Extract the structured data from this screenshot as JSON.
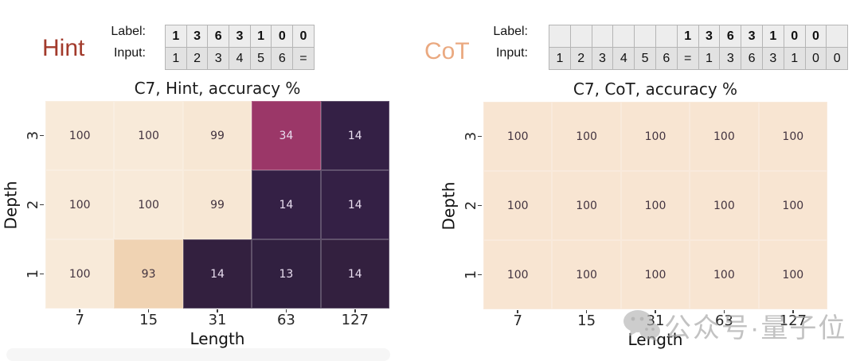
{
  "panels": [
    {
      "id": "hint",
      "tag": "Hint",
      "tag_color": "#a23a2b",
      "table": {
        "row_labels": [
          "Label:",
          "Input:"
        ],
        "rows": [
          {
            "style": "label",
            "cells": [
              "1",
              "3",
              "6",
              "3",
              "1",
              "0",
              "0"
            ]
          },
          {
            "style": "input",
            "cells": [
              "1",
              "2",
              "3",
              "4",
              "5",
              "6",
              "="
            ]
          }
        ]
      },
      "chart": {
        "title": "C7, Hint, accuracy %",
        "xlabel": "Length",
        "ylabel": "Depth",
        "x_ticks": [
          "7",
          "15",
          "31",
          "63",
          "127"
        ],
        "y_ticks": [
          "3",
          "2",
          "1"
        ],
        "cells": [
          [
            {
              "v": "100",
              "bg": "#f8ead9",
              "fg": "dark"
            },
            {
              "v": "100",
              "bg": "#f8ead9",
              "fg": "dark"
            },
            {
              "v": "99",
              "bg": "#f7e7d4",
              "fg": "dark"
            },
            {
              "v": "34",
              "bg": "#9b3768",
              "fg": "light"
            },
            {
              "v": "14",
              "bg": "#342045",
              "fg": "light"
            }
          ],
          [
            {
              "v": "100",
              "bg": "#f8ead9",
              "fg": "dark"
            },
            {
              "v": "100",
              "bg": "#f8ead9",
              "fg": "dark"
            },
            {
              "v": "99",
              "bg": "#f7e7d4",
              "fg": "dark"
            },
            {
              "v": "14",
              "bg": "#342045",
              "fg": "light"
            },
            {
              "v": "14",
              "bg": "#342045",
              "fg": "light"
            }
          ],
          [
            {
              "v": "100",
              "bg": "#f8ead9",
              "fg": "dark"
            },
            {
              "v": "93",
              "bg": "#f0d3b3",
              "fg": "dark"
            },
            {
              "v": "14",
              "bg": "#33203f",
              "fg": "light"
            },
            {
              "v": "13",
              "bg": "#312040",
              "fg": "light"
            },
            {
              "v": "14",
              "bg": "#33203f",
              "fg": "light"
            }
          ]
        ]
      }
    },
    {
      "id": "cot",
      "tag": "CoT",
      "tag_color": "#eaa980",
      "table": {
        "row_labels": [
          "Label:",
          "Input:"
        ],
        "rows": [
          {
            "style": "label",
            "cells": [
              "",
              "",
              "",
              "",
              "",
              "",
              "1",
              "3",
              "6",
              "3",
              "1",
              "0",
              "0",
              ""
            ]
          },
          {
            "style": "input",
            "cells": [
              "1",
              "2",
              "3",
              "4",
              "5",
              "6",
              "=",
              "1",
              "3",
              "6",
              "3",
              "1",
              "0",
              "0"
            ]
          }
        ]
      },
      "chart": {
        "title": "C7, CoT, accuracy %",
        "xlabel": "Length",
        "ylabel": "Depth",
        "x_ticks": [
          "7",
          "15",
          "31",
          "63",
          "127"
        ],
        "y_ticks": [
          "3",
          "2",
          "1"
        ],
        "cells": [
          [
            {
              "v": "100",
              "bg": "#f8e5d2",
              "fg": "dark"
            },
            {
              "v": "100",
              "bg": "#f8e5d2",
              "fg": "dark"
            },
            {
              "v": "100",
              "bg": "#f8e5d2",
              "fg": "dark"
            },
            {
              "v": "100",
              "bg": "#f8e5d2",
              "fg": "dark"
            },
            {
              "v": "100",
              "bg": "#f8e5d2",
              "fg": "dark"
            }
          ],
          [
            {
              "v": "100",
              "bg": "#f8e5d2",
              "fg": "dark"
            },
            {
              "v": "100",
              "bg": "#f8e5d2",
              "fg": "dark"
            },
            {
              "v": "100",
              "bg": "#f8e5d2",
              "fg": "dark"
            },
            {
              "v": "100",
              "bg": "#f8e5d2",
              "fg": "dark"
            },
            {
              "v": "100",
              "bg": "#f8e5d2",
              "fg": "dark"
            }
          ],
          [
            {
              "v": "100",
              "bg": "#f8e5d2",
              "fg": "dark"
            },
            {
              "v": "100",
              "bg": "#f8e5d2",
              "fg": "dark"
            },
            {
              "v": "100",
              "bg": "#f8e5d2",
              "fg": "dark"
            },
            {
              "v": "100",
              "bg": "#f8e5d2",
              "fg": "dark"
            },
            {
              "v": "100",
              "bg": "#f8e5d2",
              "fg": "dark"
            }
          ]
        ]
      }
    }
  ],
  "watermark": {
    "icon": "wechat-icon",
    "text": "公众号·量子位",
    "color": "#9e9e9e"
  },
  "chart_data": [
    {
      "type": "heatmap",
      "title": "C7, Hint, accuracy %",
      "xlabel": "Length",
      "ylabel": "Depth",
      "x": [
        7,
        15,
        31,
        63,
        127
      ],
      "y": [
        3,
        2,
        1
      ],
      "values": [
        [
          100,
          100,
          99,
          34,
          14
        ],
        [
          100,
          100,
          99,
          14,
          14
        ],
        [
          100,
          93,
          14,
          13,
          14
        ]
      ],
      "annotated": true,
      "value_range": [
        0,
        100
      ],
      "colormap_hint": {
        "high": "#f8ead9",
        "mid": "#9b3768",
        "low": "#33203f"
      },
      "legend": "none"
    },
    {
      "type": "heatmap",
      "title": "C7, CoT, accuracy %",
      "xlabel": "Length",
      "ylabel": "Depth",
      "x": [
        7,
        15,
        31,
        63,
        127
      ],
      "y": [
        3,
        2,
        1
      ],
      "values": [
        [
          100,
          100,
          100,
          100,
          100
        ],
        [
          100,
          100,
          100,
          100,
          100
        ],
        [
          100,
          100,
          100,
          100,
          100
        ]
      ],
      "annotated": true,
      "value_range": [
        0,
        100
      ],
      "colormap_hint": {
        "high": "#f8e5d2",
        "mid": "#9b3768",
        "low": "#33203f"
      },
      "legend": "none"
    }
  ]
}
